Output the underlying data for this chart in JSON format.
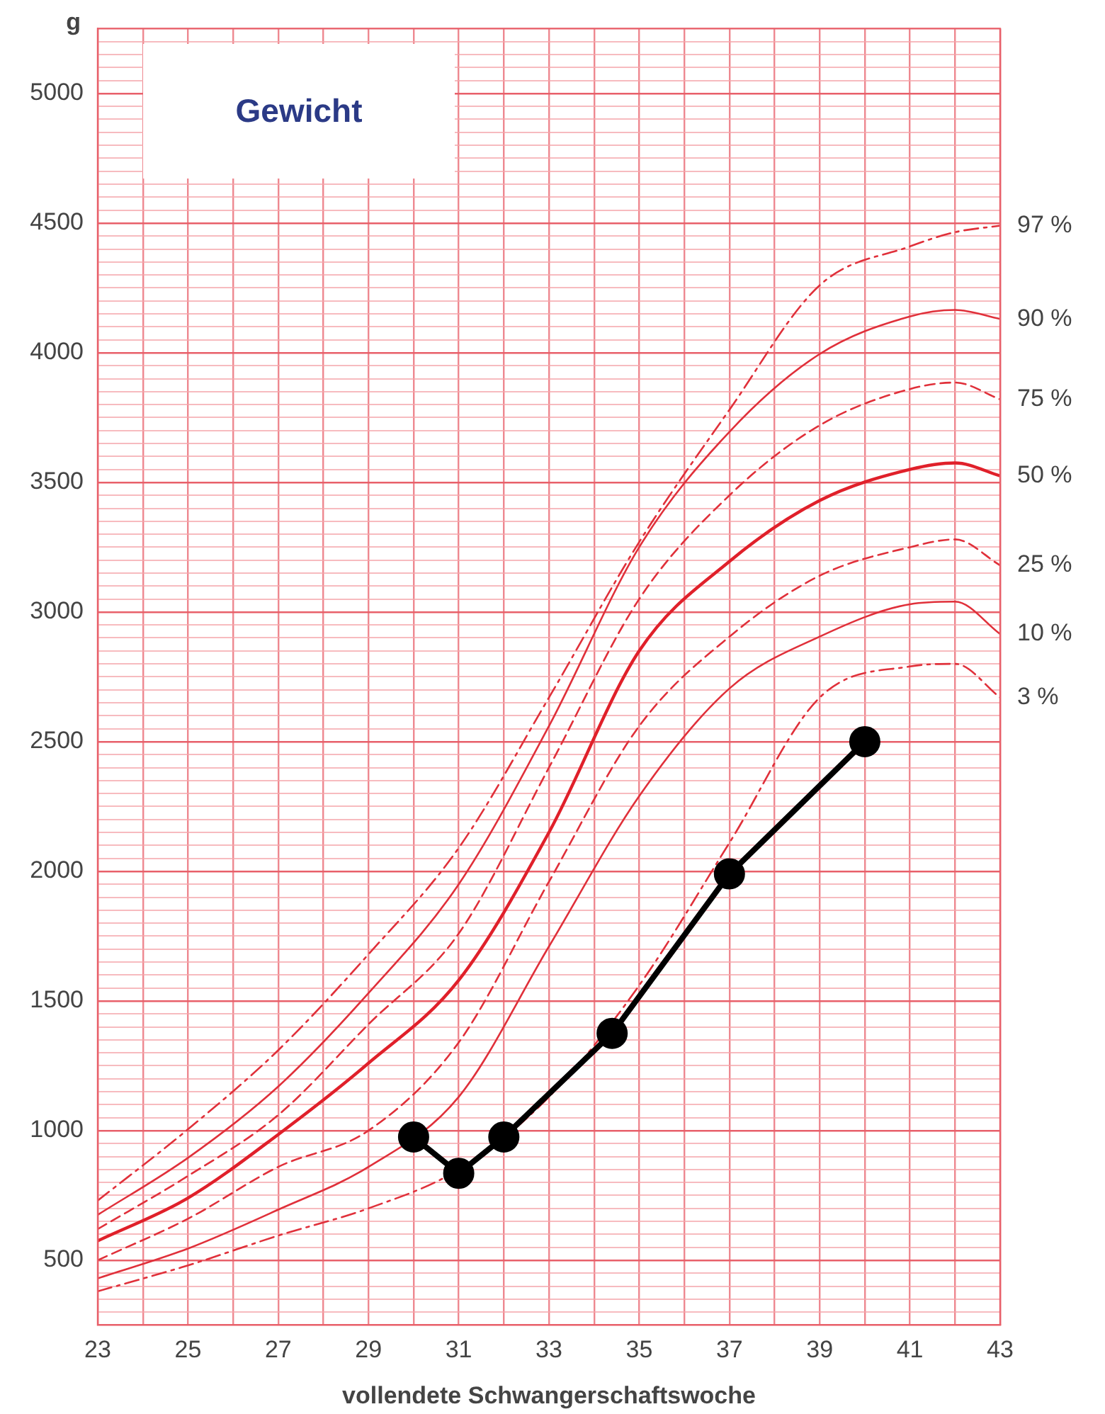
{
  "chart_data": {
    "type": "line",
    "title": "Gewicht",
    "xlabel": "vollendete Schwangerschaftswoche",
    "ylabel": "g",
    "x": [
      23,
      25,
      27,
      29,
      31,
      33,
      35,
      37,
      39,
      41,
      42,
      43
    ],
    "xlim": [
      23,
      43
    ],
    "ylim": [
      250,
      5250
    ],
    "xticks": [
      23,
      {
        "value": 24,
        "label": null
      },
      25,
      {
        "value": 26,
        "label": null
      },
      27,
      {
        "value": 28,
        "label": null
      },
      29,
      {
        "value": 30,
        "label": null
      },
      31,
      {
        "value": 32,
        "label": null
      },
      33,
      {
        "value": 34,
        "label": null
      },
      35,
      {
        "value": 36,
        "label": null
      },
      37,
      {
        "value": 38,
        "label": null
      },
      39,
      {
        "value": 40,
        "label": null
      },
      41,
      {
        "value": 42,
        "label": null
      },
      43
    ],
    "yticks": [
      {
        "value": 250,
        "label": null
      },
      {
        "value": 300,
        "label": null
      },
      {
        "value": 350,
        "label": null
      },
      {
        "value": 400,
        "label": null
      },
      {
        "value": 450,
        "label": null
      },
      500,
      {
        "value": 550,
        "label": null
      },
      {
        "value": 600,
        "label": null
      },
      {
        "value": 650,
        "label": null
      },
      {
        "value": 700,
        "label": null
      },
      {
        "value": 750,
        "label": null
      },
      {
        "value": 800,
        "label": null
      },
      {
        "value": 850,
        "label": null
      },
      {
        "value": 900,
        "label": null
      },
      {
        "value": 950,
        "label": null
      },
      1000,
      {
        "value": 1050,
        "label": null
      },
      {
        "value": 1100,
        "label": null
      },
      {
        "value": 1150,
        "label": null
      },
      {
        "value": 1200,
        "label": null
      },
      {
        "value": 1250,
        "label": null
      },
      {
        "value": 1300,
        "label": null
      },
      {
        "value": 1350,
        "label": null
      },
      {
        "value": 1400,
        "label": null
      },
      {
        "value": 1450,
        "label": null
      },
      1500,
      {
        "value": 1550,
        "label": null
      },
      {
        "value": 1600,
        "label": null
      },
      {
        "value": 1650,
        "label": null
      },
      {
        "value": 1700,
        "label": null
      },
      {
        "value": 1750,
        "label": null
      },
      {
        "value": 1800,
        "label": null
      },
      {
        "value": 1850,
        "label": null
      },
      {
        "value": 1900,
        "label": null
      },
      {
        "value": 1950,
        "label": null
      },
      2000,
      {
        "value": 2050,
        "label": null
      },
      {
        "value": 2100,
        "label": null
      },
      {
        "value": 2150,
        "label": null
      },
      {
        "value": 2200,
        "label": null
      },
      {
        "value": 2250,
        "label": null
      },
      {
        "value": 2300,
        "label": null
      },
      {
        "value": 2350,
        "label": null
      },
      {
        "value": 2400,
        "label": null
      },
      {
        "value": 2450,
        "label": null
      },
      2500,
      {
        "value": 2550,
        "label": null
      },
      {
        "value": 2600,
        "label": null
      },
      {
        "value": 2650,
        "label": null
      },
      {
        "value": 2700,
        "label": null
      },
      {
        "value": 2750,
        "label": null
      },
      {
        "value": 2800,
        "label": null
      },
      {
        "value": 2850,
        "label": null
      },
      {
        "value": 2900,
        "label": null
      },
      {
        "value": 2950,
        "label": null
      },
      3000,
      {
        "value": 3050,
        "label": null
      },
      {
        "value": 3100,
        "label": null
      },
      {
        "value": 3150,
        "label": null
      },
      {
        "value": 3200,
        "label": null
      },
      {
        "value": 3250,
        "label": null
      },
      {
        "value": 3300,
        "label": null
      },
      {
        "value": 3350,
        "label": null
      },
      {
        "value": 3400,
        "label": null
      },
      {
        "value": 3450,
        "label": null
      },
      3500,
      {
        "value": 3550,
        "label": null
      },
      {
        "value": 3600,
        "label": null
      },
      {
        "value": 3650,
        "label": null
      },
      {
        "value": 3700,
        "label": null
      },
      {
        "value": 3750,
        "label": null
      },
      {
        "value": 3800,
        "label": null
      },
      {
        "value": 3850,
        "label": null
      },
      {
        "value": 3900,
        "label": null
      },
      {
        "value": 3950,
        "label": null
      },
      4000,
      {
        "value": 4050,
        "label": null
      },
      {
        "value": 4100,
        "label": null
      },
      {
        "value": 4150,
        "label": null
      },
      {
        "value": 4200,
        "label": null
      },
      {
        "value": 4250,
        "label": null
      },
      {
        "value": 4300,
        "label": null
      },
      {
        "value": 4350,
        "label": null
      },
      {
        "value": 4400,
        "label": null
      },
      {
        "value": 4450,
        "label": null
      },
      4500,
      {
        "value": 4550,
        "label": null
      },
      {
        "value": 4600,
        "label": null
      },
      {
        "value": 4650,
        "label": null
      },
      {
        "value": 4700,
        "label": null
      },
      {
        "value": 4750,
        "label": null
      },
      {
        "value": 4800,
        "label": null
      },
      {
        "value": 4850,
        "label": null
      },
      {
        "value": 4900,
        "label": null
      },
      {
        "value": 4950,
        "label": null
      },
      5000,
      {
        "value": 5050,
        "label": null
      },
      {
        "value": 5100,
        "label": null
      },
      {
        "value": 5150,
        "label": null
      },
      {
        "value": 5200,
        "label": null
      },
      {
        "value": 5250,
        "label": null
      }
    ],
    "grid": true,
    "legend": false,
    "marker": "none",
    "series": [
      {
        "name": "97 %",
        "color": "#e0303a",
        "line_style": "dotted",
        "values": [
          730,
          1005,
          1310,
          1680,
          2090,
          2670,
          3270,
          3780,
          4260,
          4410,
          4465,
          4490
        ]
      },
      {
        "name": "90 %",
        "color": "#e0303a",
        "line_style": "solid",
        "values": [
          675,
          895,
          1170,
          1530,
          1950,
          2560,
          3250,
          3695,
          3995,
          4140,
          4165,
          4130
        ]
      },
      {
        "name": "75 %",
        "color": "#e0303a",
        "line_style": "dashed",
        "values": [
          620,
          825,
          1060,
          1410,
          1760,
          2400,
          3050,
          3450,
          3720,
          3860,
          3885,
          3820
        ]
      },
      {
        "name": "50 %",
        "color": "#e0202a",
        "line_style": "solid",
        "values": [
          575,
          740,
          985,
          1260,
          1580,
          2150,
          2850,
          3195,
          3430,
          3550,
          3575,
          3525
        ]
      },
      {
        "name": "25 %",
        "color": "#e0303a",
        "line_style": "dashed",
        "values": [
          500,
          660,
          860,
          1000,
          1340,
          1960,
          2560,
          2905,
          3140,
          3250,
          3280,
          3180
        ]
      },
      {
        "name": "10 %",
        "color": "#e0303a",
        "line_style": "solid",
        "values": [
          430,
          545,
          695,
          860,
          1130,
          1710,
          2290,
          2705,
          2905,
          3030,
          3040,
          2915
        ]
      },
      {
        "name": "3 %",
        "color": "#e0303a",
        "line_style": "dotted",
        "values": [
          380,
          480,
          595,
          700,
          850,
          1130,
          1560,
          2110,
          2670,
          2790,
          2800,
          2670
        ]
      },
      {
        "color": "#000000",
        "line_style": "solid",
        "marker": "circle",
        "x": [
          30,
          31,
          32,
          34.4,
          37,
          40
        ],
        "values": [
          975,
          835,
          975,
          1375,
          1990,
          2500
        ]
      }
    ]
  }
}
